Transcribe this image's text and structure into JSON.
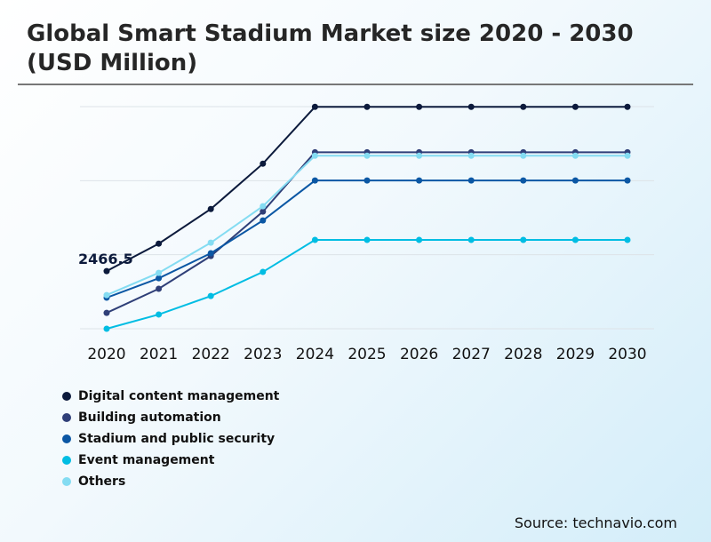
{
  "title": "Global Smart Stadium Market size 2020 - 2030 (USD Million)",
  "source": "Source: technavio.com",
  "chart_data": {
    "type": "line",
    "title": "Global Smart Stadium Market size 2020 - 2030 (USD Million)",
    "xlabel": "",
    "ylabel": "",
    "categories": [
      "2020",
      "2021",
      "2022",
      "2023",
      "2024",
      "2025",
      "2026",
      "2027",
      "2028",
      "2029",
      "2030"
    ],
    "ylim": [
      0,
      9500
    ],
    "grid": true,
    "legend_position": "bottom-left",
    "series": [
      {
        "name": "Digital content management",
        "color": "#0c1a3c",
        "values": [
          2466.5,
          3640,
          5120,
          7060,
          9490,
          9490,
          9490,
          9490,
          9490,
          9490,
          9490
        ]
      },
      {
        "name": "Building automation",
        "color": "#2f3f78",
        "values": [
          680,
          1710,
          3110,
          5010,
          7550,
          7550,
          7550,
          7550,
          7550,
          7550,
          7550
        ]
      },
      {
        "name": "Stadium and public security",
        "color": "#0b57a4",
        "values": [
          1330,
          2160,
          3230,
          4630,
          6340,
          6340,
          6340,
          6340,
          6340,
          6340,
          6340
        ]
      },
      {
        "name": "Event management",
        "color": "#00bde3",
        "values": [
          0,
          610,
          1400,
          2430,
          3800,
          3800,
          3800,
          3800,
          3800,
          3800,
          3800
        ]
      },
      {
        "name": "Others",
        "color": "#84dcf2",
        "values": [
          1440,
          2390,
          3680,
          5240,
          7400,
          7400,
          7400,
          7400,
          7400,
          7400,
          7400
        ]
      }
    ],
    "data_labels": [
      {
        "series": "Digital content management",
        "x": "2020",
        "text": "2466.5"
      }
    ]
  }
}
